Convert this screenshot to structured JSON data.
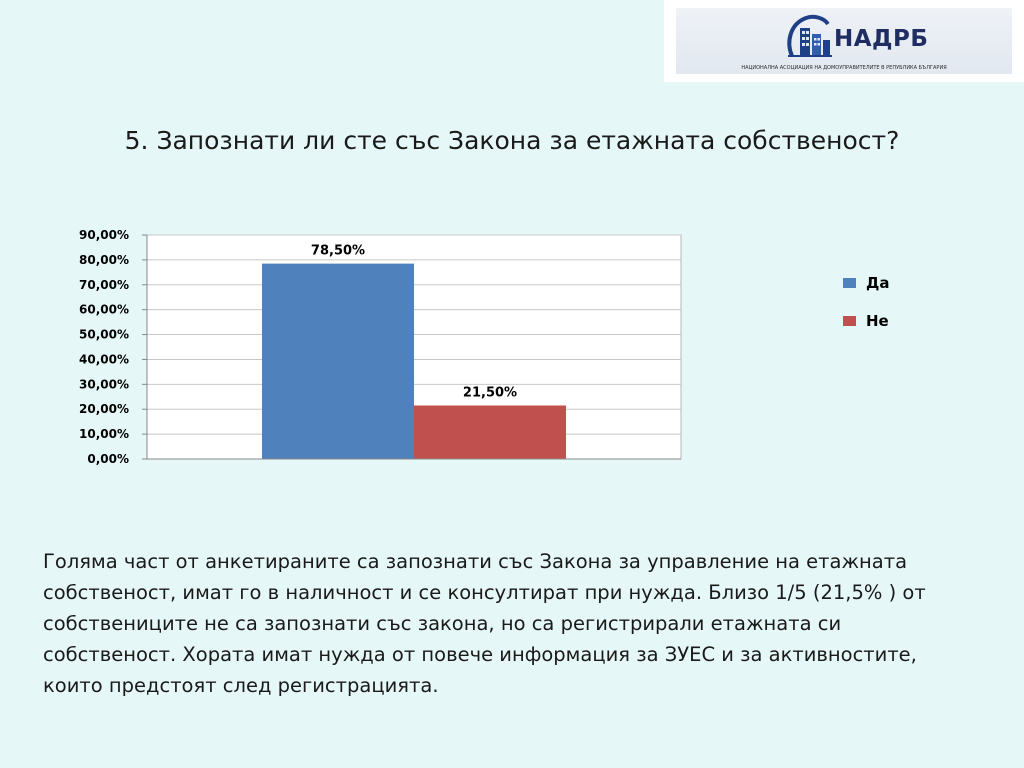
{
  "logo": {
    "text": "НАДРБ",
    "subtitle": "НАЦИОНАЛНА АСОЦИАЦИЯ НА ДОМОУПРАВИТЕЛИТЕ В РЕПУБЛИКА БЪЛГАРИЯ"
  },
  "slide": {
    "title": "5. Запознати ли сте със Закона за етажната собственост?",
    "body": "Голяма част от анкетираните са запознати със Закона за управление на етажната собственост, имат го в наличност и се консултират при нужда. Близо 1/5 (21,5% ) от собствениците не са запознати със закона, но са регистрирали етажната си собственост. Хората имат нужда от повече информация за ЗУЕС и за активностите, които предстоят след регистрацията."
  },
  "chart_data": {
    "type": "bar",
    "categories": [
      ""
    ],
    "series": [
      {
        "name": "Да",
        "values": [
          0.785
        ],
        "label": "78,50%",
        "color": "#4f81bd"
      },
      {
        "name": "Не",
        "values": [
          0.215
        ],
        "label": "21,50%",
        "color": "#c0504d"
      }
    ],
    "yticks": [
      "0,00%",
      "10,00%",
      "20,00%",
      "30,00%",
      "40,00%",
      "50,00%",
      "60,00%",
      "70,00%",
      "80,00%",
      "90,00%"
    ],
    "ylim": [
      0,
      0.9
    ],
    "grid": true,
    "legend": "right"
  }
}
